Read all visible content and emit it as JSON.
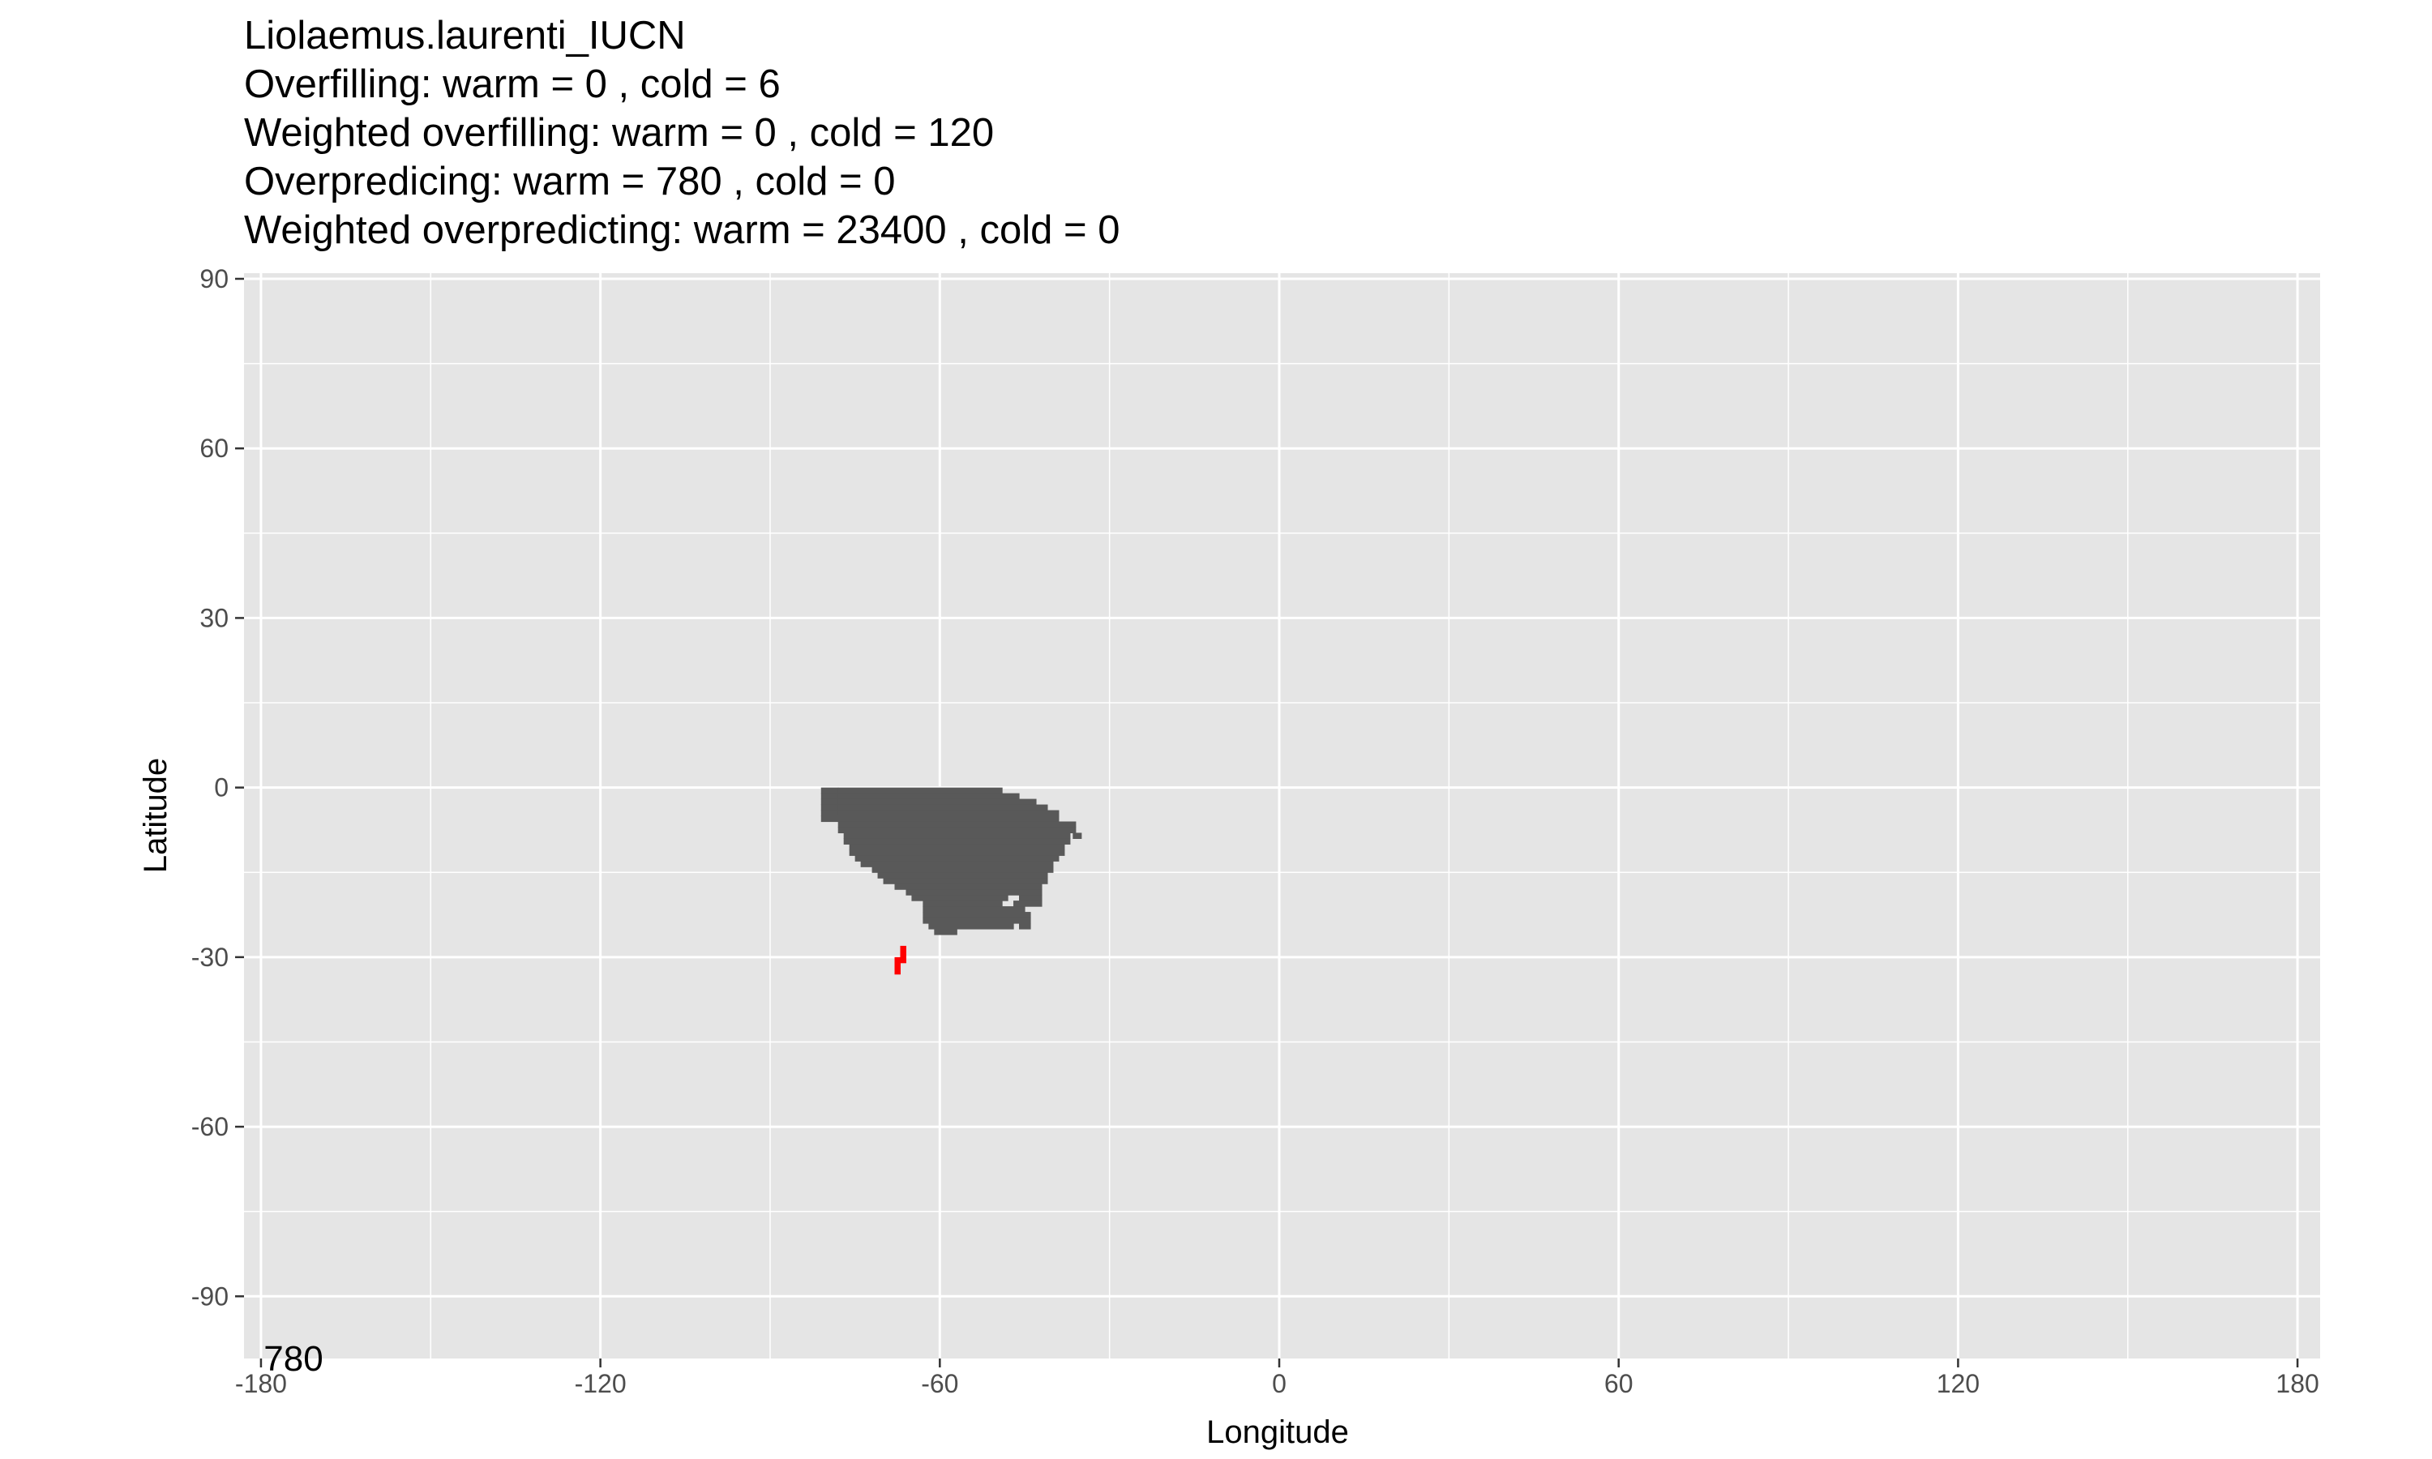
{
  "chart_data": {
    "type": "heatmap",
    "title_lines": [
      "Liolaemus.laurenti_IUCN",
      "Overfilling: warm =  0  , cold =  6",
      "Weighted overfilling: warm =  0 , cold =  120",
      "Overpredicing: warm =  780  , cold =  0",
      "Weighted overpredicting: warm =  23400 , cold =  0"
    ],
    "xlabel": "Longitude",
    "ylabel": "Latitude",
    "xlim": [
      -183,
      184
    ],
    "ylim": [
      -101,
      91
    ],
    "x_ticks": [
      -180,
      -120,
      -60,
      0,
      60,
      120,
      180
    ],
    "y_ticks": [
      -90,
      -60,
      -30,
      0,
      30,
      60,
      90
    ],
    "x_tick_labels": [
      "-180",
      "-120",
      "-60",
      "0",
      "60",
      "120",
      "180"
    ],
    "y_tick_labels": [
      "-90",
      "-60",
      "-30",
      "0",
      "30",
      "60",
      "90"
    ],
    "grid": true,
    "annotation": "780",
    "colors": {
      "panel": "#e5e5e5",
      "grid": "#ffffff",
      "predicted": "#595959",
      "overfilled": "#ff0000"
    },
    "predicted_rows": [
      {
        "lat": [
          0,
          -1
        ],
        "segments": [
          [
            -81,
            -78
          ],
          [
            -78,
            -49
          ]
        ]
      },
      {
        "lat": [
          -1,
          -2
        ],
        "segments": [
          [
            -81,
            -78
          ],
          [
            -78,
            -46
          ]
        ]
      },
      {
        "lat": [
          -2,
          -3
        ],
        "segments": [
          [
            -81,
            -78
          ],
          [
            -78,
            -43
          ]
        ]
      },
      {
        "lat": [
          -3,
          -4
        ],
        "segments": [
          [
            -81,
            -78
          ],
          [
            -78,
            -41
          ]
        ]
      },
      {
        "lat": [
          -4,
          -5
        ],
        "segments": [
          [
            -81,
            -78
          ],
          [
            -78,
            -39
          ]
        ]
      },
      {
        "lat": [
          -5,
          -6
        ],
        "segments": [
          [
            -81,
            -39
          ]
        ]
      },
      {
        "lat": [
          -6,
          -7
        ],
        "segments": [
          [
            -78,
            -36
          ]
        ]
      },
      {
        "lat": [
          -7,
          -8
        ],
        "segments": [
          [
            -78,
            -36
          ]
        ]
      },
      {
        "lat": [
          -8,
          -9
        ],
        "segments": [
          [
            -77,
            -37
          ],
          [
            -36.5,
            -35
          ]
        ]
      },
      {
        "lat": [
          -9,
          -10
        ],
        "segments": [
          [
            -77,
            -37
          ]
        ]
      },
      {
        "lat": [
          -10,
          -11
        ],
        "segments": [
          [
            -76,
            -38
          ]
        ]
      },
      {
        "lat": [
          -11,
          -12
        ],
        "segments": [
          [
            -76,
            -38
          ]
        ]
      },
      {
        "lat": [
          -12,
          -13
        ],
        "segments": [
          [
            -75,
            -39
          ]
        ]
      },
      {
        "lat": [
          -13,
          -14
        ],
        "segments": [
          [
            -74,
            -40
          ]
        ]
      },
      {
        "lat": [
          -14,
          -15
        ],
        "segments": [
          [
            -72,
            -40
          ]
        ]
      },
      {
        "lat": [
          -15,
          -16
        ],
        "segments": [
          [
            -71,
            -41
          ]
        ]
      },
      {
        "lat": [
          -16,
          -17
        ],
        "segments": [
          [
            -70,
            -41
          ]
        ]
      },
      {
        "lat": [
          -17,
          -18
        ],
        "segments": [
          [
            -68,
            -42
          ]
        ]
      },
      {
        "lat": [
          -18,
          -19
        ],
        "segments": [
          [
            -66,
            -42
          ]
        ]
      },
      {
        "lat": [
          -19,
          -20
        ],
        "segments": [
          [
            -65,
            -48
          ],
          [
            -46,
            -42
          ]
        ]
      },
      {
        "lat": [
          -20,
          -21
        ],
        "segments": [
          [
            -63,
            -49
          ],
          [
            -47,
            -42
          ]
        ]
      },
      {
        "lat": [
          -21,
          -22
        ],
        "segments": [
          [
            -63,
            -45
          ]
        ]
      },
      {
        "lat": [
          -22,
          -23
        ],
        "segments": [
          [
            -63,
            -44
          ]
        ]
      },
      {
        "lat": [
          -23,
          -24
        ],
        "segments": [
          [
            -63,
            -44
          ]
        ]
      },
      {
        "lat": [
          -24,
          -25
        ],
        "segments": [
          [
            -62,
            -47
          ],
          [
            -46,
            -44
          ]
        ]
      },
      {
        "lat": [
          -25,
          -26
        ],
        "segments": [
          [
            -61,
            -57
          ]
        ]
      }
    ],
    "overfilled_cells": [
      [
        -67,
        -28
      ],
      [
        -67,
        -29
      ],
      [
        -67,
        -30
      ],
      [
        -68,
        -30
      ],
      [
        -68,
        -31
      ],
      [
        -68,
        -32
      ]
    ]
  }
}
